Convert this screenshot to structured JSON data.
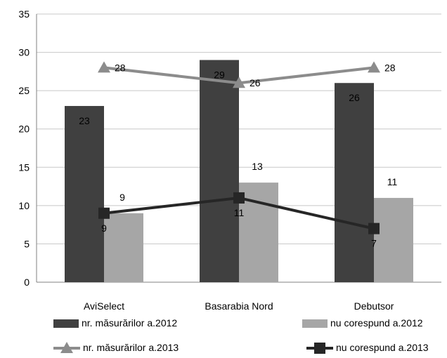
{
  "chart_data": {
    "type": "bar",
    "categories": [
      "AviSelect",
      "Basarabia Nord",
      "Debutsor"
    ],
    "ylim": [
      0,
      35
    ],
    "yticks": [
      0,
      5,
      10,
      15,
      20,
      25,
      30,
      35
    ],
    "grid": true,
    "legend_position": "bottom",
    "series": [
      {
        "name": "nr. măsurărilor a.2012",
        "kind": "bar",
        "color": "#404040",
        "values": [
          23,
          29,
          26
        ]
      },
      {
        "name": "nu corespund a.2012",
        "kind": "bar",
        "color": "#a6a6a6",
        "values": [
          9,
          13,
          11
        ]
      },
      {
        "name": "nr. măsurărilor a.2013",
        "kind": "line",
        "marker": "triangle",
        "color": "#8c8c8c",
        "values": [
          28,
          26,
          28
        ]
      },
      {
        "name": "nu corespund a.2013",
        "kind": "line",
        "marker": "square",
        "color": "#262626",
        "values": [
          9,
          11,
          7
        ]
      }
    ]
  }
}
